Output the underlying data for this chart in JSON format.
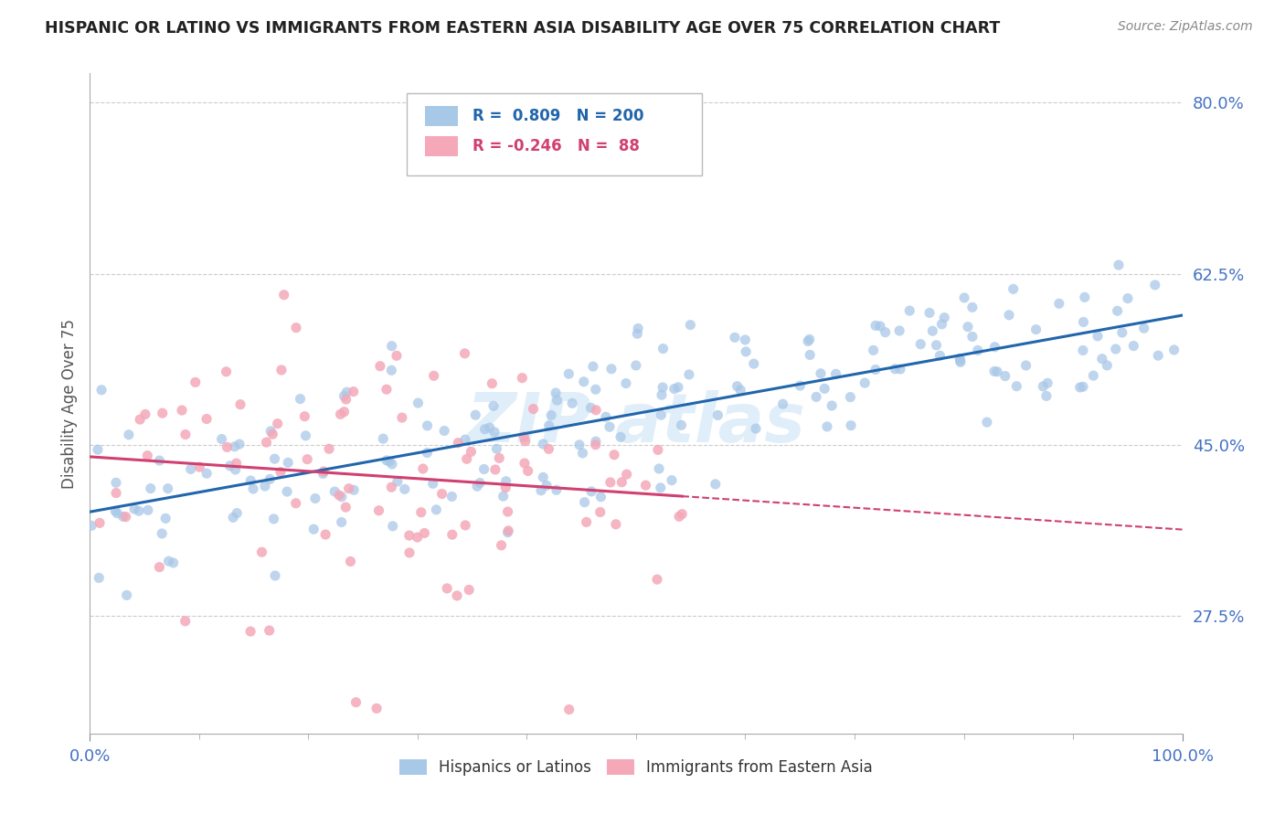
{
  "title": "HISPANIC OR LATINO VS IMMIGRANTS FROM EASTERN ASIA DISABILITY AGE OVER 75 CORRELATION CHART",
  "source": "Source: ZipAtlas.com",
  "ylabel": "Disability Age Over 75",
  "x_min": 0.0,
  "x_max": 1.0,
  "y_min": 0.155,
  "y_max": 0.83,
  "y_ticks": [
    0.275,
    0.45,
    0.625,
    0.8
  ],
  "y_tick_labels": [
    "27.5%",
    "45.0%",
    "62.5%",
    "80.0%"
  ],
  "x_tick_labels": [
    "0.0%",
    "100.0%"
  ],
  "legend_blue_label": "Hispanics or Latinos",
  "legend_pink_label": "Immigrants from Eastern Asia",
  "R_blue": 0.809,
  "N_blue": 200,
  "R_pink": -0.246,
  "N_pink": 88,
  "blue_color": "#a8c8e8",
  "pink_color": "#f4a8b8",
  "blue_line_color": "#2166ac",
  "pink_line_color": "#d04070",
  "title_color": "#222222",
  "tick_label_color": "#4472c4",
  "background_color": "#ffffff",
  "grid_color": "#cccccc",
  "blue_line_start_y": 0.395,
  "blue_line_end_y": 0.565,
  "pink_line_start_y": 0.455,
  "pink_line_end_y": 0.31
}
